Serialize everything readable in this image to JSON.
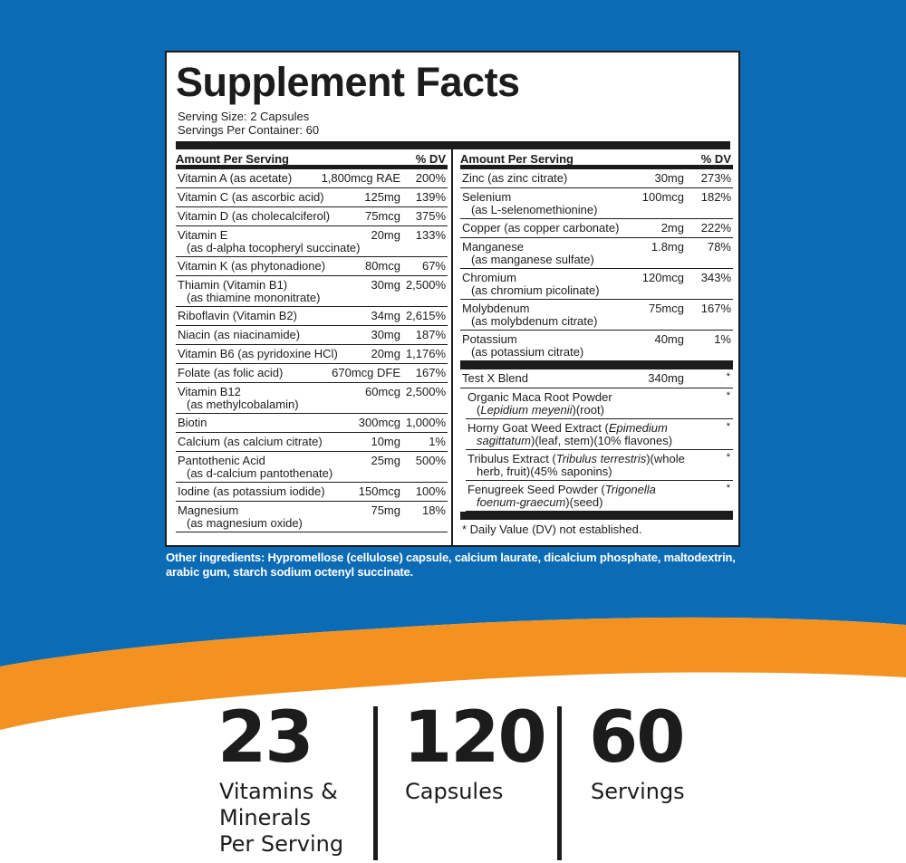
{
  "colors": {
    "blue": "#0c6bb5",
    "orange": "#f39221",
    "ink": "#1c1c1c",
    "white": "#ffffff"
  },
  "panel": {
    "title": "Supplement Facts",
    "serving_size": "Serving Size: 2 Capsules",
    "servings_per_container": "Servings Per Container: 60",
    "left_header": {
      "label": "Amount Per Serving",
      "dv": "% DV"
    },
    "right_header": {
      "label": "Amount Per Serving",
      "dv": "% DV"
    },
    "left_rows": [
      {
        "name": "Vitamin A (as acetate)",
        "sub": "",
        "amount": "1,800mcg RAE",
        "dv": "200%"
      },
      {
        "name": "Vitamin C (as ascorbic acid)",
        "sub": "",
        "amount": "125mg",
        "dv": "139%"
      },
      {
        "name": "Vitamin D (as cholecalciferol)",
        "sub": "",
        "amount": "75mcg",
        "dv": "375%"
      },
      {
        "name": "Vitamin E",
        "sub": "(as d-alpha tocopheryl succinate)",
        "amount": "20mg",
        "dv": "133%"
      },
      {
        "name": "Vitamin K (as phytonadione)",
        "sub": "",
        "amount": "80mcg",
        "dv": "67%"
      },
      {
        "name": "Thiamin (Vitamin B1)",
        "sub": "(as thiamine mononitrate)",
        "amount": "30mg",
        "dv": "2,500%"
      },
      {
        "name": "Riboflavin (Vitamin B2)",
        "sub": "",
        "amount": "34mg",
        "dv": "2,615%"
      },
      {
        "name": "Niacin (as niacinamide)",
        "sub": "",
        "amount": "30mg",
        "dv": "187%"
      },
      {
        "name": "Vitamin B6 (as pyridoxine HCl)",
        "sub": "",
        "amount": "20mg",
        "dv": "1,176%"
      },
      {
        "name": "Folate (as folic acid)",
        "sub": "",
        "amount": "670mcg DFE",
        "dv": "167%"
      },
      {
        "name": "Vitamin B12",
        "sub": "(as methylcobalamin)",
        "amount": "60mcg",
        "dv": "2,500%"
      },
      {
        "name": "Biotin",
        "sub": "",
        "amount": "300mcg",
        "dv": "1,000%"
      },
      {
        "name": "Calcium (as calcium citrate)",
        "sub": "",
        "amount": "10mg",
        "dv": "1%"
      },
      {
        "name": "Pantothenic Acid",
        "sub": "(as d-calcium pantothenate)",
        "amount": "25mg",
        "dv": "500%"
      },
      {
        "name": "Iodine (as potassium iodide)",
        "sub": "",
        "amount": "150mcg",
        "dv": "100%"
      },
      {
        "name": "Magnesium",
        "sub": "(as magnesium oxide)",
        "amount": "75mg",
        "dv": "18%"
      }
    ],
    "right_rows": [
      {
        "name": "Zinc (as zinc citrate)",
        "sub": "",
        "amount": "30mg",
        "dv": "273%"
      },
      {
        "name": "Selenium",
        "sub": "(as L-selenomethionine)",
        "amount": "100mcg",
        "dv": "182%"
      },
      {
        "name": "Copper (as copper carbonate)",
        "sub": "",
        "amount": "2mg",
        "dv": "222%"
      },
      {
        "name": "Manganese",
        "sub": "(as manganese sulfate)",
        "amount": "1.8mg",
        "dv": "78%"
      },
      {
        "name": "Chromium",
        "sub": "(as chromium picolinate)",
        "amount": "120mcg",
        "dv": "343%"
      },
      {
        "name": "Molybdenum",
        "sub": "(as molybdenum citrate)",
        "amount": "75mcg",
        "dv": "167%"
      },
      {
        "name": "Potassium",
        "sub": "(as potassium citrate)",
        "amount": "40mg",
        "dv": "1%"
      }
    ],
    "blend": {
      "name": "Test X Blend",
      "amount": "340mg",
      "dv": "*",
      "items": [
        {
          "line1": "Organic Maca Root Powder",
          "line2_italic": "Lepidium meyenii",
          "line2_rest": ")(root)",
          "line2_open": "(",
          "line1_italic": "",
          "line1_rest": "",
          "dv": "*"
        },
        {
          "line1": "Horny Goat Weed Extract (",
          "line1_italic": "Epimedium",
          "line1_rest": "",
          "line2_open": "",
          "line2_italic": "sagittatum",
          "line2_rest": ")(leaf, stem)(10% flavones)",
          "dv": "*"
        },
        {
          "line1": "Tribulus Extract (",
          "line1_italic": "Tribulus terrestris",
          "line1_rest": ")(whole",
          "line2_open": "",
          "line2_italic": "",
          "line2_rest": "herb, fruit)(45% saponins)",
          "dv": "*"
        },
        {
          "line1": "Fenugreek Seed Powder (",
          "line1_italic": "Trigonella",
          "line1_rest": "",
          "line2_open": "",
          "line2_italic": "foenum-graecum",
          "line2_rest": ")(seed)",
          "dv": "*"
        }
      ]
    },
    "footnote": "* Daily Value (DV) not established."
  },
  "other_ingredients": "Other ingredients: Hypromellose (cellulose) capsule, calcium laurate, dicalcium phosphate, maltodextrin, arabic gum, starch sodium octenyl succinate.",
  "stats": [
    {
      "number": "23",
      "label": "Vitamins &\nMinerals\nPer Serving"
    },
    {
      "number": "120",
      "label": "Capsules"
    },
    {
      "number": "60",
      "label": "Servings"
    }
  ]
}
